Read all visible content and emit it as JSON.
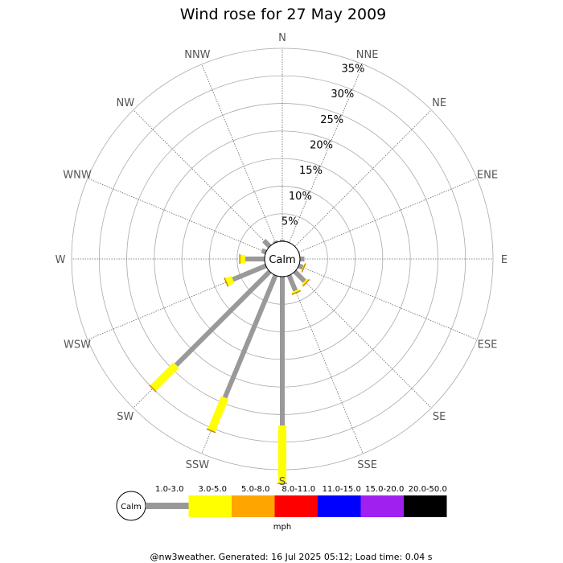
{
  "chart_data": {
    "type": "wind-rose",
    "title": "Wind rose for 27 May 2009",
    "directions": [
      "N",
      "NNE",
      "NE",
      "ENE",
      "E",
      "ESE",
      "SE",
      "SSE",
      "S",
      "SSW",
      "SW",
      "WSW",
      "W",
      "WNW",
      "NW",
      "NNW"
    ],
    "radial_ticks": [
      "5%",
      "10%",
      "15%",
      "20%",
      "25%",
      "30%",
      "35%"
    ],
    "radial_max_percent": 35,
    "calm_label": "Calm",
    "speed_bins": [
      "1.0-3.0",
      "3.0-5.0",
      "5.0-8.0",
      "8.0-11.0",
      "11.0-15.0",
      "15.0-20.0",
      "20.0-50.0"
    ],
    "speed_colors": [
      "#999999",
      "#ffff00",
      "#ffa500",
      "#ff0000",
      "#0000ff",
      "#a020f0",
      "#000000"
    ],
    "unit": "mph",
    "series": [
      {
        "bin": "1.0-3.0",
        "values": [
          0.3,
          0,
          0,
          0,
          0.8,
          0.8,
          2.5,
          3.0,
          27.0,
          24.0,
          24.0,
          6.5,
          3.5,
          0.8,
          1.5,
          0.3
        ]
      },
      {
        "bin": "3.0-5.0",
        "values": [
          0,
          0,
          0,
          0,
          0,
          0.2,
          0.4,
          0.4,
          10.5,
          6.5,
          6.0,
          1.3,
          1.0,
          0,
          0,
          0
        ]
      }
    ]
  },
  "footer": "@nw3weather. Generated: 16 Jul 2025 05:12; Load time: 0.04 s"
}
